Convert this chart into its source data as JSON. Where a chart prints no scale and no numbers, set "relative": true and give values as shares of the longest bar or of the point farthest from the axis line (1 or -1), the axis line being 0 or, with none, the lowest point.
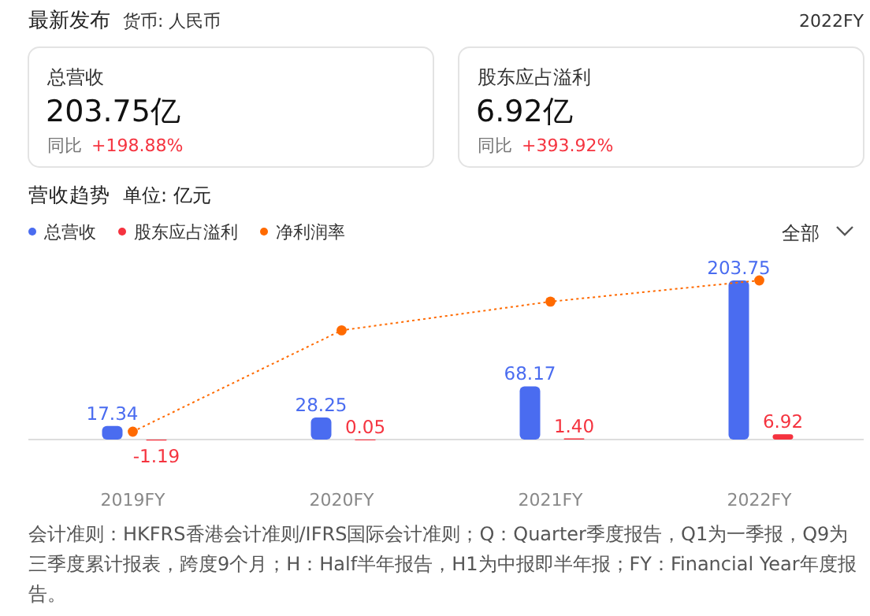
{
  "chart_data": [
    {
      "type": "other",
      "title": "最新发布",
      "subtitle": "货币: 人民币",
      "annotations": [
        "2022FY",
        "总营收",
        "203.75亿",
        "同比",
        "+198.88%",
        "股东应占溢利",
        "6.92亿",
        "同比",
        "+393.92%"
      ]
    },
    {
      "type": "bar",
      "title": "营收趋势",
      "subtitle": "单位: 亿元",
      "categories": [
        "2019FY",
        "2020FY",
        "2021FY",
        "2022FY"
      ],
      "series": [
        {
          "name": "总营收",
          "color": "#4a6cf0",
          "values": [
            17.34,
            28.25,
            68.17,
            203.75
          ],
          "value_labels": [
            "17.34",
            "28.25",
            "68.17",
            "203.75"
          ]
        },
        {
          "name": "股东应占溢利",
          "color": "#f5333f",
          "values": [
            -1.19,
            0.05,
            1.4,
            6.92
          ],
          "value_labels": [
            "-1.19",
            "0.05",
            "1.40",
            "6.92"
          ]
        }
      ],
      "legend": "top left",
      "annotations": [
        "全部",
        "会计准则：HKFRS香港会计准则/IFRS国际会计准则；Q：Quarter季度报告，Q1为一季报，Q9为三季度累计报表，跨度9个月；H：Half半年报告，H1为中报即半年报；FY：Financial Year年度报告。"
      ]
    },
    {
      "type": "line",
      "relative": true,
      "categories": [
        null,
        null,
        null,
        null
      ],
      "marker": "circle",
      "line_style": "dotted",
      "legend": "top left",
      "series": [
        {
          "name": "净利润率",
          "color": "#ff6a00",
          "values": [
            0,
            0.67,
            0.86,
            1
          ]
        }
      ]
    }
  ]
}
